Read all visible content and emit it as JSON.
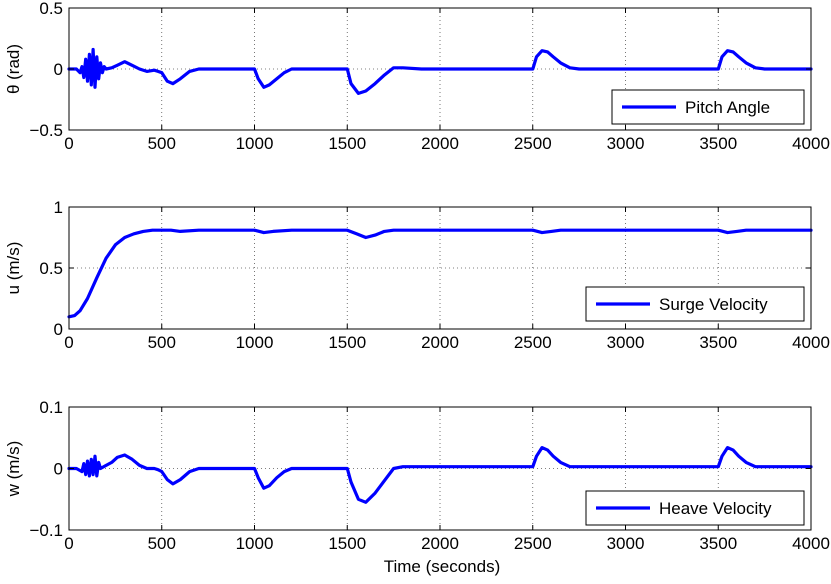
{
  "chart_data": [
    {
      "type": "line",
      "ylabel": "θ (rad)",
      "xlabel": "",
      "xlim": [
        0,
        4000
      ],
      "ylim": [
        -0.5,
        0.5
      ],
      "xticks": [
        0,
        500,
        1000,
        1500,
        2000,
        2500,
        3000,
        3500,
        4000
      ],
      "xtick_labels": [
        "0",
        "500",
        "1000",
        "1500",
        "2000",
        "2500",
        "3000",
        "3500",
        "4000"
      ],
      "yticks": [
        -0.5,
        0,
        0.5
      ],
      "ytick_labels": [
        "−0.5",
        "0",
        "0.5"
      ],
      "grid": true,
      "legend_position": "bottom-right",
      "series": [
        {
          "name": "Pitch Angle",
          "color": "#0000ff",
          "x": [
            0,
            40,
            60,
            70,
            80,
            90,
            100,
            110,
            120,
            130,
            140,
            150,
            160,
            170,
            180,
            190,
            200,
            230,
            260,
            300,
            340,
            380,
            420,
            460,
            480,
            500,
            530,
            560,
            600,
            650,
            700,
            800,
            900,
            1000,
            1020,
            1050,
            1080,
            1120,
            1160,
            1200,
            1250,
            1300,
            1400,
            1500,
            1520,
            1560,
            1600,
            1650,
            1700,
            1750,
            1800,
            1900,
            2000,
            2100,
            2200,
            2300,
            2400,
            2500,
            2520,
            2550,
            2580,
            2610,
            2650,
            2700,
            2750,
            2800,
            2900,
            3000,
            3100,
            3200,
            3300,
            3400,
            3500,
            3520,
            3550,
            3580,
            3610,
            3650,
            3700,
            3750,
            3800,
            3900,
            4000
          ],
          "y": [
            0,
            0,
            -0.03,
            0.02,
            -0.07,
            0.08,
            -0.1,
            0.12,
            -0.13,
            0.16,
            -0.15,
            0.1,
            -0.08,
            0.05,
            -0.03,
            0.02,
            0,
            0.01,
            0.03,
            0.06,
            0.03,
            0,
            -0.02,
            -0.01,
            -0.02,
            -0.03,
            -0.1,
            -0.12,
            -0.08,
            -0.02,
            0,
            0,
            0,
            0,
            -0.08,
            -0.15,
            -0.13,
            -0.08,
            -0.03,
            0,
            0,
            0,
            0,
            0,
            -0.12,
            -0.2,
            -0.18,
            -0.12,
            -0.05,
            0.01,
            0.01,
            0,
            0,
            0,
            0,
            0,
            0,
            0,
            0.1,
            0.15,
            0.14,
            0.1,
            0.05,
            0.01,
            0,
            0,
            0,
            0,
            0,
            0,
            0,
            0,
            0,
            0.1,
            0.15,
            0.14,
            0.1,
            0.05,
            0.01,
            0,
            0,
            0,
            0
          ]
        }
      ]
    },
    {
      "type": "line",
      "ylabel": "u (m/s)",
      "xlabel": "",
      "xlim": [
        0,
        4000
      ],
      "ylim": [
        0,
        1
      ],
      "xticks": [
        0,
        500,
        1000,
        1500,
        2000,
        2500,
        3000,
        3500,
        4000
      ],
      "xtick_labels": [
        "0",
        "500",
        "1000",
        "1500",
        "2000",
        "2500",
        "3000",
        "3500",
        "4000"
      ],
      "yticks": [
        0,
        0.5,
        1
      ],
      "ytick_labels": [
        "0",
        "0.5",
        "1"
      ],
      "grid": true,
      "legend_position": "bottom-right",
      "series": [
        {
          "name": "Surge Velocity",
          "color": "#0000ff",
          "x": [
            0,
            30,
            60,
            100,
            150,
            200,
            250,
            300,
            350,
            400,
            450,
            500,
            550,
            600,
            700,
            800,
            900,
            1000,
            1050,
            1100,
            1200,
            1300,
            1400,
            1500,
            1550,
            1600,
            1650,
            1700,
            1750,
            1800,
            2000,
            2200,
            2400,
            2500,
            2550,
            2600,
            2650,
            2800,
            3000,
            3200,
            3400,
            3500,
            3550,
            3600,
            3650,
            4000
          ],
          "y": [
            0.1,
            0.11,
            0.15,
            0.25,
            0.42,
            0.58,
            0.69,
            0.75,
            0.78,
            0.8,
            0.81,
            0.81,
            0.81,
            0.8,
            0.81,
            0.81,
            0.81,
            0.81,
            0.79,
            0.8,
            0.81,
            0.81,
            0.81,
            0.81,
            0.78,
            0.75,
            0.77,
            0.8,
            0.81,
            0.81,
            0.81,
            0.81,
            0.81,
            0.81,
            0.79,
            0.8,
            0.81,
            0.81,
            0.81,
            0.81,
            0.81,
            0.81,
            0.79,
            0.8,
            0.81,
            0.81
          ]
        }
      ]
    },
    {
      "type": "line",
      "ylabel": "w (m/s)",
      "xlabel": "Time (seconds)",
      "xlim": [
        0,
        4000
      ],
      "ylim": [
        -0.1,
        0.1
      ],
      "xticks": [
        0,
        500,
        1000,
        1500,
        2000,
        2500,
        3000,
        3500,
        4000
      ],
      "xtick_labels": [
        "0",
        "500",
        "1000",
        "1500",
        "2000",
        "2500",
        "3000",
        "3500",
        "4000"
      ],
      "yticks": [
        -0.1,
        0,
        0.1
      ],
      "ytick_labels": [
        "−0.1",
        "0",
        "0.1"
      ],
      "grid": true,
      "legend_position": "bottom-right",
      "series": [
        {
          "name": "Heave Velocity",
          "color": "#0000ff",
          "x": [
            0,
            40,
            70,
            80,
            90,
            100,
            110,
            120,
            130,
            140,
            150,
            160,
            170,
            200,
            230,
            260,
            300,
            340,
            380,
            420,
            460,
            480,
            500,
            530,
            560,
            600,
            650,
            700,
            800,
            900,
            1000,
            1020,
            1050,
            1080,
            1120,
            1160,
            1200,
            1250,
            1300,
            1400,
            1500,
            1520,
            1560,
            1600,
            1650,
            1700,
            1750,
            1800,
            2000,
            2200,
            2400,
            2500,
            2520,
            2550,
            2580,
            2610,
            2650,
            2700,
            2750,
            2800,
            3000,
            3200,
            3400,
            3500,
            3520,
            3550,
            3580,
            3610,
            3650,
            3700,
            3750,
            3800,
            4000
          ],
          "y": [
            0,
            0,
            -0.005,
            0.008,
            -0.01,
            0.012,
            -0.012,
            0.015,
            -0.01,
            0.02,
            -0.012,
            0.01,
            0,
            0.005,
            0.01,
            0.018,
            0.022,
            0.015,
            0.005,
            0,
            0,
            -0.002,
            -0.005,
            -0.018,
            -0.025,
            -0.018,
            -0.005,
            0,
            0,
            0,
            0,
            -0.015,
            -0.032,
            -0.028,
            -0.015,
            -0.005,
            0,
            0,
            0,
            0,
            0,
            -0.022,
            -0.05,
            -0.055,
            -0.04,
            -0.02,
            0,
            0.003,
            0.003,
            0.003,
            0.003,
            0.003,
            0.02,
            0.034,
            0.03,
            0.02,
            0.01,
            0.003,
            0.003,
            0.003,
            0.003,
            0.003,
            0.003,
            0.003,
            0.02,
            0.034,
            0.03,
            0.02,
            0.01,
            0.003,
            0.003,
            0.003,
            0.003
          ]
        }
      ]
    }
  ]
}
